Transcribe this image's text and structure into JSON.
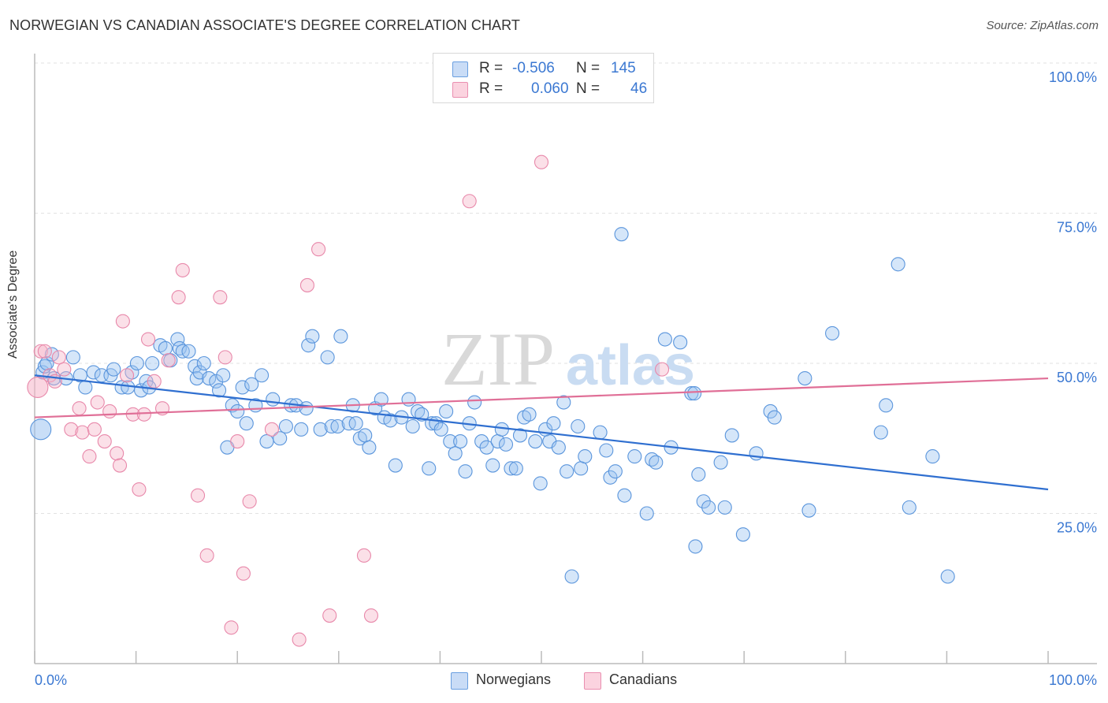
{
  "header": {
    "title": "NORWEGIAN VS CANADIAN ASSOCIATE'S DEGREE CORRELATION CHART",
    "source": "Source: ZipAtlas.com"
  },
  "watermark": {
    "part1": "ZIP",
    "part2": "atlas"
  },
  "legend_top": {
    "rows": [
      {
        "r_label": "R =",
        "r_value": "-0.506",
        "n_label": "N =",
        "n_value": "145",
        "color": "#9cc3f0"
      },
      {
        "r_label": "R =",
        "r_value": "0.060",
        "n_label": "N =",
        "n_value": "46",
        "color": "#f5b4c8"
      }
    ]
  },
  "legend_bottom": {
    "items": [
      "Norwegians",
      "Canadians"
    ]
  },
  "chart_data": {
    "type": "scatter",
    "ylabel": "Associate's Degree",
    "xlim": [
      0,
      100
    ],
    "ylim": [
      0,
      100
    ],
    "x_tick_labels": [
      "0.0%",
      "100.0%"
    ],
    "y_tick_labels": [
      {
        "value": 100,
        "label": "100.0%"
      },
      {
        "value": 75,
        "label": "75.0%"
      },
      {
        "value": 50,
        "label": "50.0%"
      },
      {
        "value": 25,
        "label": "25.0%"
      }
    ],
    "series": [
      {
        "name": "Norwegians",
        "color": "#9cc3f0",
        "stroke": "#5a95dc",
        "trend": {
          "x0": 0,
          "y0": 48.0,
          "x1": 100,
          "y1": 29.0,
          "color": "#2f6fd0"
        },
        "points": [
          [
            0.6,
            39.0
          ],
          [
            0.8,
            48.5
          ],
          [
            1.0,
            49.5
          ],
          [
            1.2,
            50.0
          ],
          [
            1.7,
            51.5
          ],
          [
            1.9,
            47.5
          ],
          [
            3.1,
            47.5
          ],
          [
            3.8,
            51.0
          ],
          [
            4.5,
            48.0
          ],
          [
            5.0,
            46.0
          ],
          [
            5.8,
            48.5
          ],
          [
            6.6,
            48.0
          ],
          [
            7.5,
            48.0
          ],
          [
            7.8,
            49.0
          ],
          [
            8.6,
            46.0
          ],
          [
            9.2,
            46.0
          ],
          [
            9.6,
            48.5
          ],
          [
            10.1,
            50.0
          ],
          [
            10.5,
            45.5
          ],
          [
            11.0,
            47.0
          ],
          [
            11.3,
            46.0
          ],
          [
            11.6,
            50.0
          ],
          [
            12.4,
            53.0
          ],
          [
            12.9,
            52.5
          ],
          [
            13.4,
            50.5
          ],
          [
            14.1,
            54.0
          ],
          [
            14.3,
            52.5
          ],
          [
            14.6,
            52.0
          ],
          [
            15.2,
            52.0
          ],
          [
            15.8,
            49.5
          ],
          [
            16.0,
            47.5
          ],
          [
            16.3,
            48.5
          ],
          [
            16.7,
            50.0
          ],
          [
            17.2,
            47.5
          ],
          [
            17.9,
            47.0
          ],
          [
            18.2,
            45.5
          ],
          [
            18.6,
            48.0
          ],
          [
            19.0,
            36.0
          ],
          [
            19.5,
            43.0
          ],
          [
            20.0,
            42.0
          ],
          [
            20.5,
            46.0
          ],
          [
            20.9,
            40.0
          ],
          [
            21.4,
            46.5
          ],
          [
            21.8,
            43.0
          ],
          [
            22.4,
            48.0
          ],
          [
            22.9,
            37.0
          ],
          [
            23.5,
            44.0
          ],
          [
            24.2,
            37.5
          ],
          [
            24.8,
            39.5
          ],
          [
            25.3,
            43.0
          ],
          [
            25.8,
            43.0
          ],
          [
            26.3,
            39.0
          ],
          [
            26.8,
            42.5
          ],
          [
            27.0,
            53.0
          ],
          [
            27.4,
            54.5
          ],
          [
            28.2,
            39.0
          ],
          [
            28.9,
            51.0
          ],
          [
            29.3,
            39.5
          ],
          [
            29.9,
            39.5
          ],
          [
            30.2,
            54.5
          ],
          [
            31.0,
            40.0
          ],
          [
            31.4,
            43.0
          ],
          [
            31.7,
            40.0
          ],
          [
            32.1,
            37.5
          ],
          [
            32.6,
            38.0
          ],
          [
            33.0,
            36.0
          ],
          [
            33.6,
            42.5
          ],
          [
            34.2,
            44.0
          ],
          [
            34.5,
            41.0
          ],
          [
            35.1,
            40.5
          ],
          [
            35.6,
            33.0
          ],
          [
            36.2,
            41.0
          ],
          [
            36.9,
            44.0
          ],
          [
            37.3,
            39.5
          ],
          [
            37.8,
            42.0
          ],
          [
            38.2,
            41.5
          ],
          [
            38.9,
            32.5
          ],
          [
            39.2,
            40.0
          ],
          [
            39.6,
            40.0
          ],
          [
            40.1,
            39.0
          ],
          [
            40.6,
            42.0
          ],
          [
            41.0,
            37.0
          ],
          [
            41.5,
            35.0
          ],
          [
            42.0,
            37.0
          ],
          [
            42.5,
            32.0
          ],
          [
            42.9,
            40.0
          ],
          [
            43.4,
            43.5
          ],
          [
            44.1,
            37.0
          ],
          [
            44.6,
            36.0
          ],
          [
            45.2,
            33.0
          ],
          [
            45.7,
            37.0
          ],
          [
            46.1,
            39.0
          ],
          [
            46.5,
            36.5
          ],
          [
            47.0,
            32.5
          ],
          [
            47.5,
            32.5
          ],
          [
            47.9,
            38.0
          ],
          [
            48.3,
            41.0
          ],
          [
            48.8,
            41.5
          ],
          [
            49.4,
            37.0
          ],
          [
            49.9,
            30.0
          ],
          [
            50.4,
            39.0
          ],
          [
            50.8,
            37.0
          ],
          [
            51.2,
            40.0
          ],
          [
            51.7,
            36.0
          ],
          [
            52.2,
            43.5
          ],
          [
            52.5,
            32.0
          ],
          [
            53.0,
            14.5
          ],
          [
            53.6,
            39.5
          ],
          [
            53.9,
            32.5
          ],
          [
            54.3,
            34.5
          ],
          [
            55.8,
            38.5
          ],
          [
            56.4,
            35.5
          ],
          [
            56.8,
            31.0
          ],
          [
            57.3,
            32.0
          ],
          [
            57.9,
            71.5
          ],
          [
            58.2,
            28.0
          ],
          [
            59.2,
            34.5
          ],
          [
            60.4,
            25.0
          ],
          [
            60.9,
            34.0
          ],
          [
            61.3,
            33.5
          ],
          [
            62.2,
            54.0
          ],
          [
            62.8,
            36.0
          ],
          [
            63.7,
            53.5
          ],
          [
            64.8,
            45.0
          ],
          [
            65.1,
            45.0
          ],
          [
            65.2,
            19.5
          ],
          [
            65.5,
            31.5
          ],
          [
            66.0,
            27.0
          ],
          [
            66.5,
            26.0
          ],
          [
            67.7,
            33.5
          ],
          [
            68.1,
            26.0
          ],
          [
            68.8,
            38.0
          ],
          [
            69.9,
            21.5
          ],
          [
            71.2,
            35.0
          ],
          [
            72.6,
            42.0
          ],
          [
            73.0,
            41.0
          ],
          [
            76.0,
            47.5
          ],
          [
            76.4,
            25.5
          ],
          [
            78.7,
            55.0
          ],
          [
            83.5,
            38.5
          ],
          [
            84.0,
            43.0
          ],
          [
            85.2,
            66.5
          ],
          [
            86.3,
            26.0
          ],
          [
            88.6,
            34.5
          ],
          [
            90.1,
            14.5
          ]
        ]
      },
      {
        "name": "Canadians",
        "color": "#f5b4c8",
        "stroke": "#e888aa",
        "trend": {
          "x0": 0,
          "y0": 41.0,
          "x1": 100,
          "y1": 47.5,
          "color": "#e06f97"
        },
        "points": [
          [
            0.3,
            46.0
          ],
          [
            0.6,
            52.0
          ],
          [
            1.0,
            52.0
          ],
          [
            1.5,
            48.0
          ],
          [
            2.0,
            47.0
          ],
          [
            2.4,
            51.0
          ],
          [
            2.9,
            49.0
          ],
          [
            3.6,
            39.0
          ],
          [
            4.4,
            42.5
          ],
          [
            4.7,
            38.5
          ],
          [
            5.4,
            34.5
          ],
          [
            5.9,
            39.0
          ],
          [
            6.2,
            43.5
          ],
          [
            6.9,
            37.0
          ],
          [
            7.4,
            42.0
          ],
          [
            8.1,
            35.0
          ],
          [
            8.4,
            33.0
          ],
          [
            8.7,
            57.0
          ],
          [
            9.1,
            48.0
          ],
          [
            9.7,
            41.5
          ],
          [
            10.3,
            29.0
          ],
          [
            10.8,
            41.5
          ],
          [
            11.2,
            54.0
          ],
          [
            11.8,
            47.0
          ],
          [
            12.6,
            42.5
          ],
          [
            13.2,
            50.5
          ],
          [
            14.2,
            61.0
          ],
          [
            14.6,
            65.5
          ],
          [
            16.1,
            28.0
          ],
          [
            17.0,
            18.0
          ],
          [
            18.3,
            61.0
          ],
          [
            18.8,
            51.0
          ],
          [
            19.4,
            6.0
          ],
          [
            20.0,
            37.0
          ],
          [
            20.6,
            15.0
          ],
          [
            21.2,
            27.0
          ],
          [
            23.4,
            39.0
          ],
          [
            26.1,
            4.0
          ],
          [
            26.9,
            63.0
          ],
          [
            28.0,
            69.0
          ],
          [
            29.1,
            8.0
          ],
          [
            32.5,
            18.0
          ],
          [
            33.2,
            8.0
          ],
          [
            42.9,
            77.0
          ],
          [
            50.0,
            83.5
          ],
          [
            61.9,
            49.0
          ]
        ]
      }
    ]
  }
}
